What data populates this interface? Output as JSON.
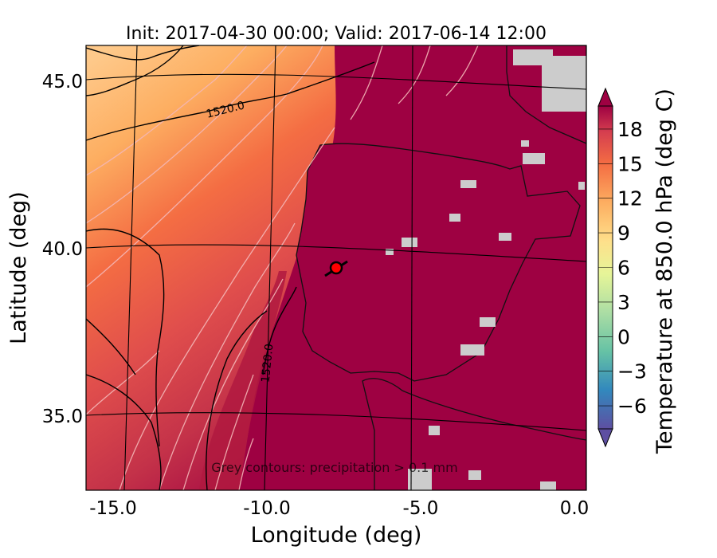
{
  "title": "Init: 2017-04-30 00:00; Valid: 2017-06-14 12:00",
  "xlabel": "Longitude (deg)",
  "ylabel": "Latitude (deg)",
  "colorbar_label": "Temperature at 850.0 hPa (deg C)",
  "annotation": "Grey contours: precipitation > 0.1 mm",
  "colors": {
    "land_hot": "#9e0142",
    "sea_warm": "#d53e4f",
    "sea_orange": "#f46d43",
    "sea_light": "#fdae61",
    "precip_grey": "#cccccc",
    "marker": "#ff0000"
  },
  "chart_data": {
    "type": "heatmap",
    "title": "Init: 2017-04-30 00:00; Valid: 2017-06-14 12:00",
    "xlabel": "Longitude (deg)",
    "ylabel": "Latitude (deg)",
    "xlim": [
      -16,
      0.3
    ],
    "ylim": [
      32.5,
      46.2
    ],
    "x_ticks": [
      {
        "value": -15,
        "label": "-15.0"
      },
      {
        "value": -10,
        "label": "-10.0"
      },
      {
        "value": -5,
        "label": "-5.0"
      },
      {
        "value": 0,
        "label": "0.0"
      }
    ],
    "y_ticks": [
      {
        "value": 35,
        "label": "35.0"
      },
      {
        "value": 40,
        "label": "40.0"
      },
      {
        "value": 45,
        "label": "45.0"
      }
    ],
    "colorbar": {
      "label": "Temperature at 850.0 hPa (deg C)",
      "min": -8,
      "max": 20,
      "ticks": [
        {
          "value": -6,
          "label": "−6"
        },
        {
          "value": -3,
          "label": "−3"
        },
        {
          "value": 0,
          "label": "0"
        },
        {
          "value": 3,
          "label": "3"
        },
        {
          "value": 6,
          "label": "6"
        },
        {
          "value": 9,
          "label": "9"
        },
        {
          "value": 12,
          "label": "12"
        },
        {
          "value": 15,
          "label": "15"
        },
        {
          "value": 18,
          "label": "18"
        }
      ]
    },
    "contour_labels": [
      {
        "text": "1520.0",
        "lon": -12.0,
        "lat": 44.2
      },
      {
        "text": "1520.0",
        "lon": -10.7,
        "lat": 36.6
      }
    ],
    "marker": {
      "lon": -7.7,
      "lat": 39.3
    }
  }
}
